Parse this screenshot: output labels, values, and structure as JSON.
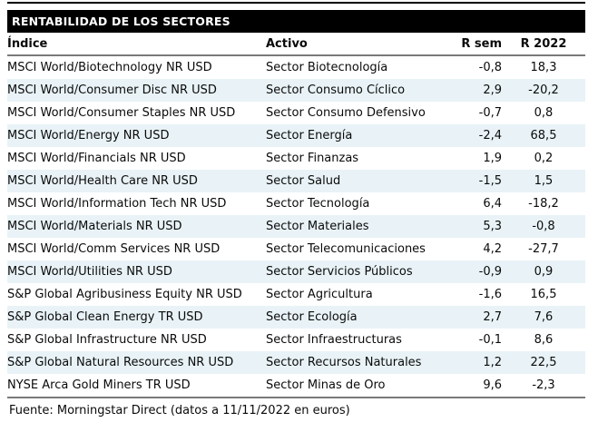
{
  "title": "RENTABILIDAD DE LOS SECTORES",
  "footer": "Fuente: Morningstar Direct (datos a 11/11/2022 en euros)",
  "colors": {
    "title_bar_bg": "#000000",
    "title_bar_text": "#ffffff",
    "alt_row_bg": "#e9f3f7",
    "divider": "#7a7a7a",
    "body_text": "#0a0a0a"
  },
  "chart_data": {
    "type": "table",
    "title": "RENTABILIDAD DE LOS SECTORES",
    "columns": [
      "Índice",
      "Activo",
      "R sem",
      "R 2022"
    ],
    "rows": [
      [
        "MSCI World/Biotechnology NR USD",
        "Sector Biotecnología",
        "-0,8",
        "18,3"
      ],
      [
        "MSCI World/Consumer Disc NR USD",
        "Sector Consumo Cíclico",
        "2,9",
        "-20,2"
      ],
      [
        "MSCI World/Consumer Staples NR USD",
        "Sector Consumo Defensivo",
        "-0,7",
        "0,8"
      ],
      [
        "MSCI World/Energy NR USD",
        "Sector Energía",
        "-2,4",
        "68,5"
      ],
      [
        "MSCI World/Financials NR USD",
        "Sector Finanzas",
        "1,9",
        "0,2"
      ],
      [
        "MSCI World/Health Care NR USD",
        "Sector Salud",
        "-1,5",
        "1,5"
      ],
      [
        "MSCI World/Information Tech NR USD",
        "Sector Tecnología",
        "6,4",
        "-18,2"
      ],
      [
        "MSCI World/Materials NR USD",
        "Sector Materiales",
        "5,3",
        "-0,8"
      ],
      [
        "MSCI World/Comm Services NR USD",
        "Sector Telecomunicaciones",
        "4,2",
        "-27,7"
      ],
      [
        "MSCI World/Utilities NR USD",
        "Sector Servicios Públicos",
        "-0,9",
        "0,9"
      ],
      [
        "S&P Global Agribusiness Equity NR USD",
        "Sector Agricultura",
        "-1,6",
        "16,5"
      ],
      [
        "S&P Global Clean Energy TR USD",
        "Sector Ecología",
        "2,7",
        "7,6"
      ],
      [
        "S&P Global Infrastructure NR USD",
        "Sector Infraestructuras",
        "-0,1",
        "8,6"
      ],
      [
        "S&P Global Natural Resources NR USD",
        "Sector Recursos Naturales",
        "1,2",
        "22,5"
      ],
      [
        "NYSE Arca Gold Miners TR USD",
        "Sector Minas de Oro",
        "9,6",
        "-2,3"
      ]
    ]
  }
}
